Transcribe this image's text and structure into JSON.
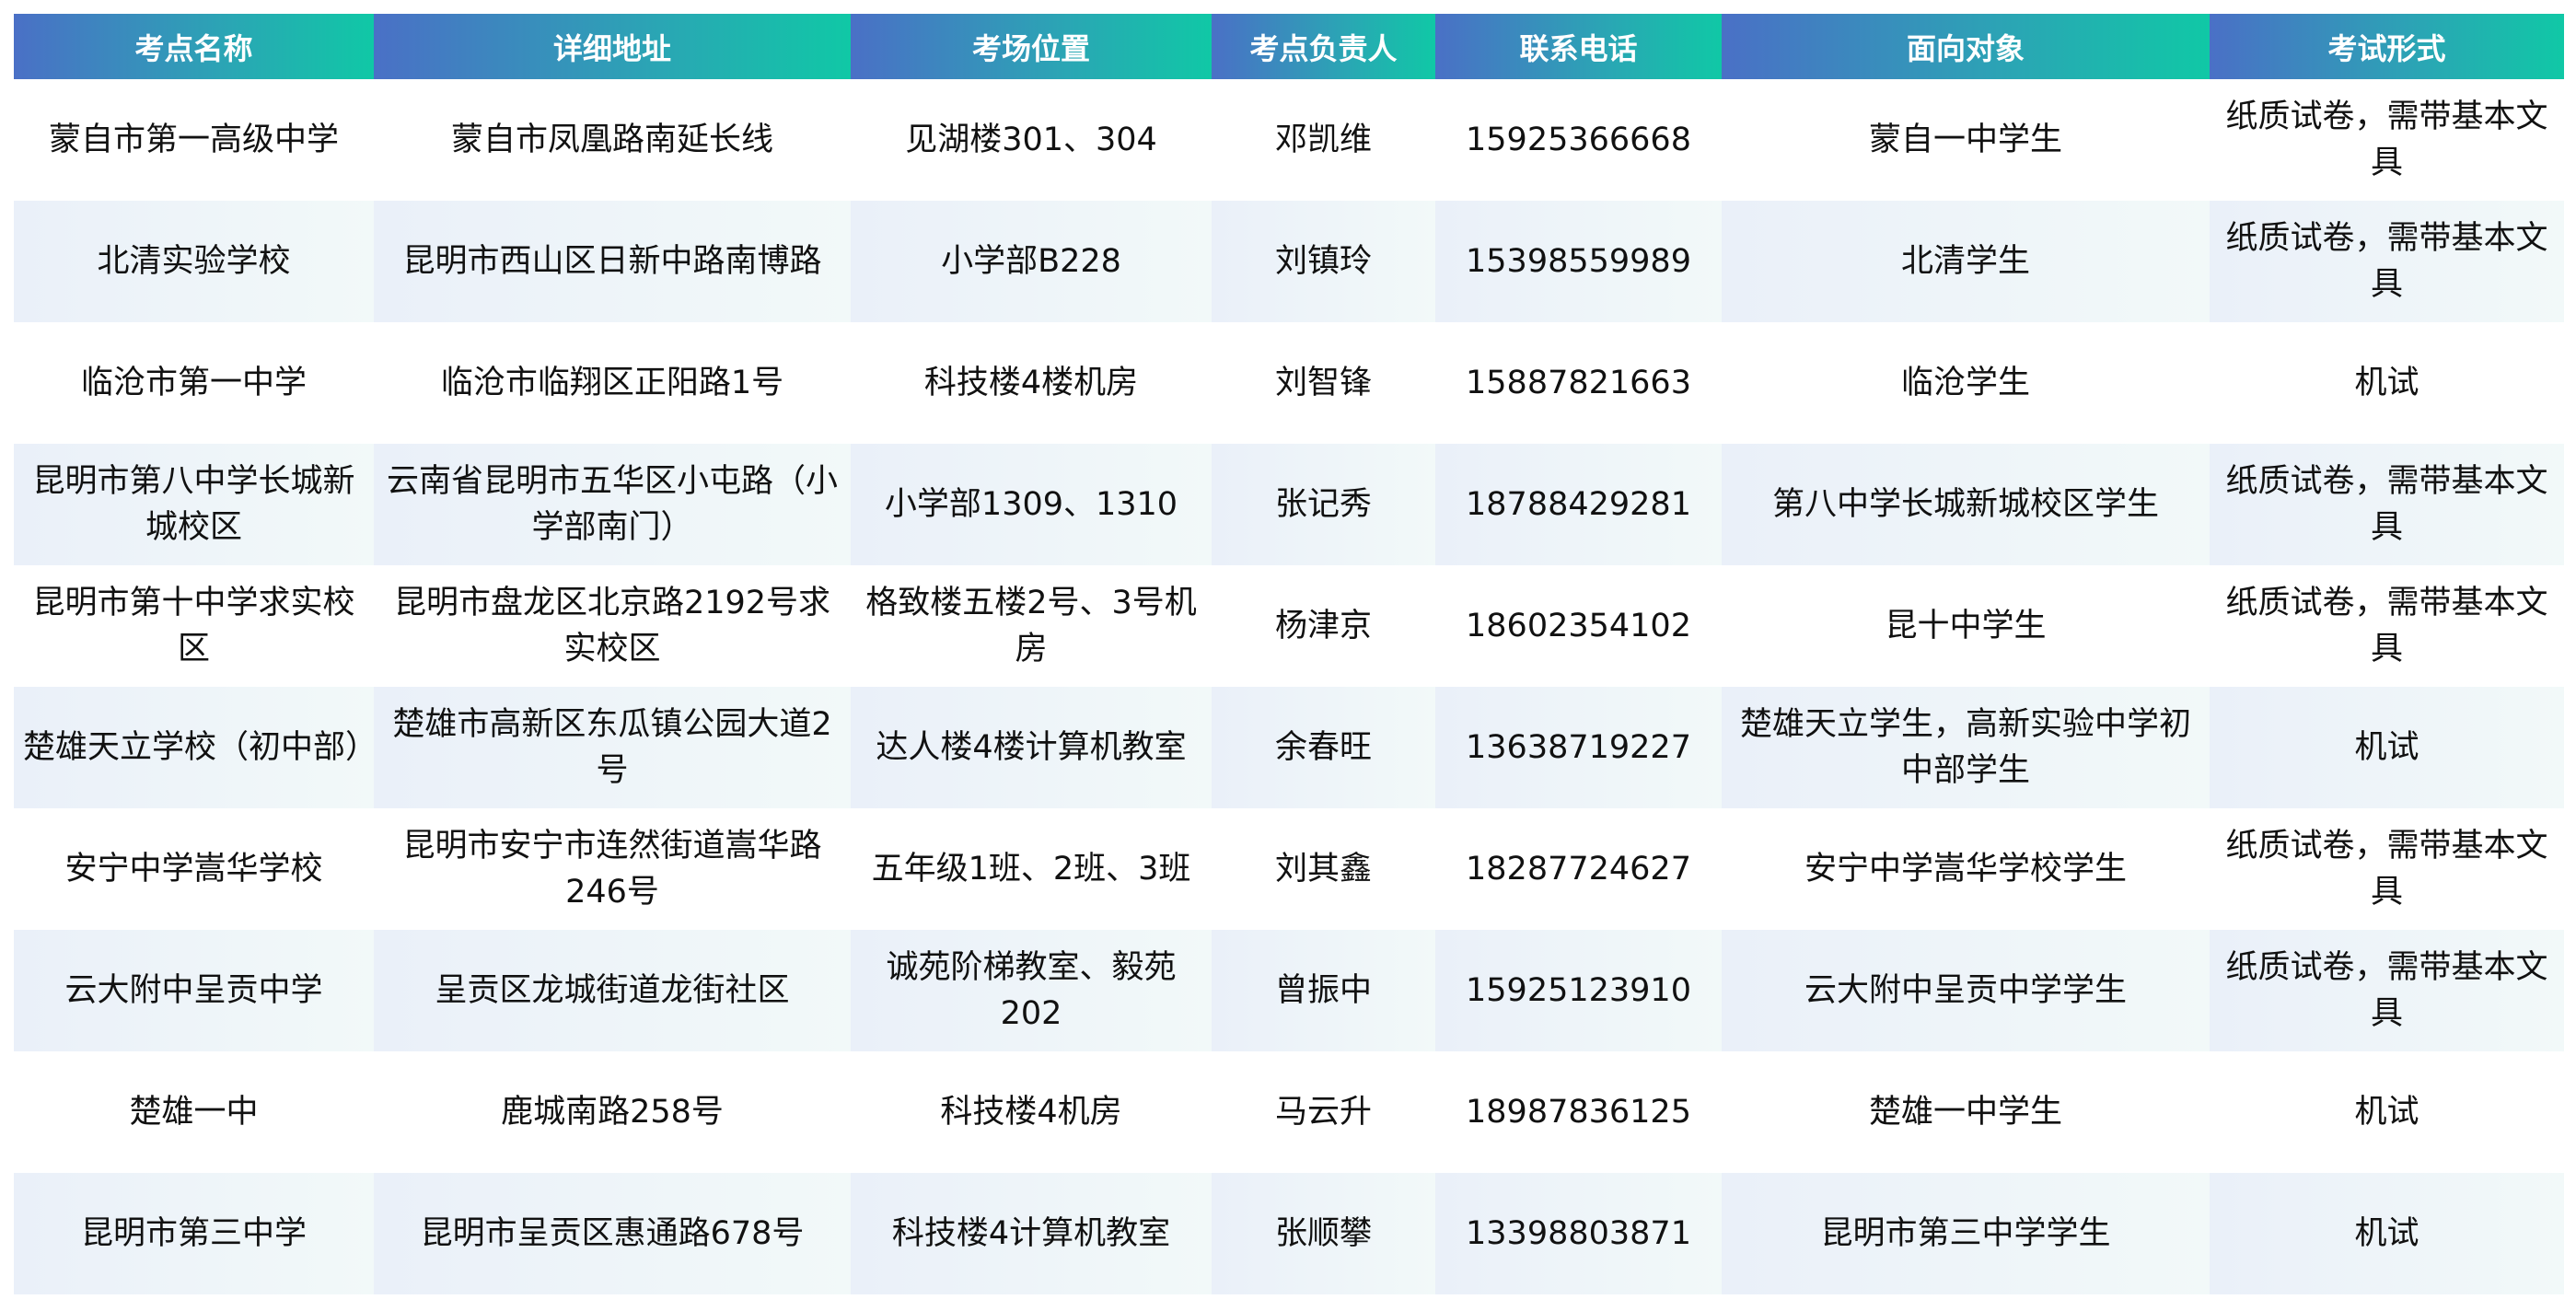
{
  "table": {
    "headers": [
      "考点名称",
      "详细地址",
      "考场位置",
      "考点负责人",
      "联系电话",
      "面向对象",
      "考试形式"
    ],
    "rows": [
      [
        "蒙自市第一高级中学",
        "蒙自市凤凰路南延长线",
        "见湖楼301、304",
        "邓凯维",
        "15925366668",
        "蒙自一中学生",
        "纸质试卷，需带基本文具"
      ],
      [
        "北清实验学校",
        "昆明市西山区日新中路南博路",
        "小学部B228",
        "刘镇玲",
        "15398559989",
        "北清学生",
        "纸质试卷，需带基本文具"
      ],
      [
        "临沧市第一中学",
        "临沧市临翔区正阳路1号",
        "科技楼4楼机房",
        "刘智锋",
        "15887821663",
        "临沧学生",
        "机试"
      ],
      [
        "昆明市第八中学长城新城校区",
        "云南省昆明市五华区小屯路（小学部南门）",
        "小学部1309、1310",
        "张记秀",
        "18788429281",
        "第八中学长城新城校区学生",
        "纸质试卷，需带基本文具"
      ],
      [
        "昆明市第十中学求实校区",
        "昆明市盘龙区北京路2192号求实校区",
        "格致楼五楼2号、3号机房",
        "杨津京",
        "18602354102",
        "昆十中学生",
        "纸质试卷，需带基本文具"
      ],
      [
        "楚雄天立学校（初中部）",
        "楚雄市高新区东瓜镇公园大道2号",
        "达人楼4楼计算机教室",
        "余春旺",
        "13638719227",
        "楚雄天立学生，高新实验中学初中部学生",
        "机试"
      ],
      [
        "安宁中学嵩华学校",
        "昆明市安宁市连然街道嵩华路246号",
        "五年级1班、2班、3班",
        "刘其鑫",
        "18287724627",
        "安宁中学嵩华学校学生",
        "纸质试卷，需带基本文具"
      ],
      [
        "云大附中呈贡中学",
        "呈贡区龙城街道龙街社区",
        "诚苑阶梯教室、毅苑202",
        "曾振中",
        "15925123910",
        "云大附中呈贡中学学生",
        "纸质试卷，需带基本文具"
      ],
      [
        "楚雄一中",
        "鹿城南路258号",
        "科技楼4机房",
        "马云升",
        "18987836125",
        "楚雄一中学生",
        "机试"
      ],
      [
        "昆明市第三中学",
        "昆明市呈贡区惠通路678号",
        "科技楼4计算机教室",
        "张顺攀",
        "13398803871",
        "昆明市第三中学学生",
        "机试"
      ]
    ]
  },
  "colors": {
    "header_start": "#4a70c6",
    "header_end": "#10c8a6",
    "alt_row": "#eef3f9"
  }
}
